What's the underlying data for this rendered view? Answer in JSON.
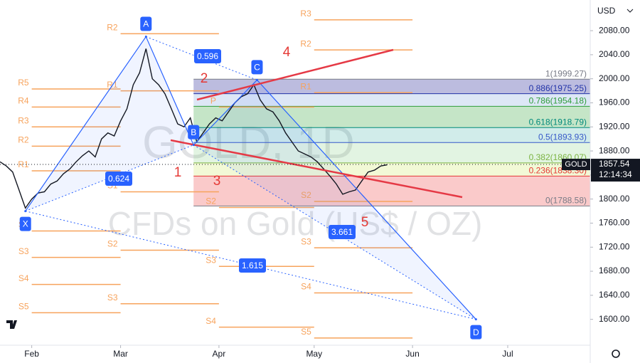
{
  "chart_data": {
    "type": "line",
    "currency": "USD",
    "watermark": {
      "symbol": "GOLD, 1D",
      "description": "CFDs on Gold (US$ / OZ)"
    },
    "x": [
      22,
      24,
      26,
      28,
      30,
      32,
      34,
      36,
      38,
      40,
      42,
      44,
      46,
      48,
      50,
      52,
      54,
      56,
      58,
      60,
      62,
      64,
      66,
      68,
      70,
      72,
      74,
      76,
      78,
      80,
      82,
      84,
      86,
      88,
      90,
      92,
      94,
      96,
      98,
      100,
      102,
      104,
      106,
      108,
      110,
      112,
      114,
      116,
      118,
      120,
      122,
      124,
      126,
      128,
      130,
      132,
      134,
      136,
      138,
      140,
      142,
      144
    ],
    "series": [
      {
        "name": "GOLD",
        "color": "#131722",
        "values": [
          1862,
          1855,
          1845,
          1815,
          1785,
          1800,
          1810,
          1812,
          1825,
          1830,
          1842,
          1850,
          1862,
          1872,
          1880,
          1870,
          1900,
          1910,
          1905,
          1930,
          1950,
          1990,
          2010,
          2050,
          2000,
          1990,
          1975,
          1950,
          1925,
          1920,
          1935,
          1895,
          1910,
          1925,
          1935,
          1930,
          1945,
          1960,
          1970,
          1975,
          1990,
          1965,
          1950,
          1945,
          1930,
          1910,
          1895,
          1880,
          1875,
          1870,
          1862,
          1850,
          1838,
          1825,
          1808,
          1812,
          1815,
          1830,
          1845,
          1848,
          1855,
          1857
        ]
      }
    ],
    "last_price": 1857.54,
    "clock": "12:14:34",
    "xlim": [
      22,
      208
    ],
    "xticks": [
      {
        "value": 32,
        "label": "Feb"
      },
      {
        "value": 60,
        "label": "Mar"
      },
      {
        "value": 91,
        "label": "Apr"
      },
      {
        "value": 121,
        "label": "May"
      },
      {
        "value": 152,
        "label": "Jun"
      },
      {
        "value": 182,
        "label": "Jul"
      }
    ],
    "ylim": [
      1557,
      2131
    ],
    "yticks": [
      {
        "value": 1600,
        "label": "1600.00"
      },
      {
        "value": 1640,
        "label": "1640.00"
      },
      {
        "value": 1680,
        "label": "1680.00"
      },
      {
        "value": 1720,
        "label": "1720.00"
      },
      {
        "value": 1760,
        "label": "1760.00"
      },
      {
        "value": 1800,
        "label": "1800.00"
      },
      {
        "value": 1840,
        "label": "1840.00"
      },
      {
        "value": 1880,
        "label": "1880.00"
      },
      {
        "value": 1920,
        "label": "1920.00"
      },
      {
        "value": 1960,
        "label": "1960.00"
      },
      {
        "value": 2000,
        "label": "2000.00"
      },
      {
        "value": 2040,
        "label": "2040.00"
      },
      {
        "value": 2080,
        "label": "2080.00"
      }
    ],
    "pattern": {
      "color": "#2962ff",
      "points": [
        {
          "name": "X",
          "x": 30,
          "y": 1780
        },
        {
          "name": "A",
          "x": 68,
          "y": 2070
        },
        {
          "name": "B",
          "x": 83,
          "y": 1890
        },
        {
          "name": "C",
          "x": 103,
          "y": 1998
        },
        {
          "name": "D",
          "x": 172,
          "y": 1600
        }
      ],
      "ratios": [
        0.596,
        0.624,
        1.615,
        3.661
      ]
    },
    "waves": [
      "1",
      "2",
      "3",
      "4",
      "5"
    ],
    "fib": [
      {
        "value": 1999.27,
        "label": "1(1999.27)",
        "color": "#787b86",
        "fill": "rgba(80,80,170,0.38)"
      },
      {
        "value": 1975.25,
        "label": "0.886(1975.25)",
        "color": "#2132a8",
        "fill": "rgba(120,160,220,0.25)"
      },
      {
        "value": 1954.18,
        "label": "0.786(1954.18)",
        "color": "#2e9d3a",
        "fill": "rgba(76,175,80,0.32)"
      },
      {
        "value": 1918.79,
        "label": "0.618(1918.79)",
        "color": "#00897b",
        "fill": "rgba(0,150,136,0.18)"
      },
      {
        "value": 1893.93,
        "label": "0.5(1893.93)",
        "color": "#3658c8",
        "fill": "rgba(110,200,110,0.2)"
      },
      {
        "value": 1860.07,
        "label": "0.382(1860.07)",
        "color": "#7cb342",
        "fill": "rgba(205,230,90,0.25)"
      },
      {
        "value": 1838.3,
        "label": "0.236(1838.30)",
        "color": "#e53935",
        "fill": "rgba(240,90,90,0.32)"
      },
      {
        "value": 1788.58,
        "label": "0(1788.58)",
        "color": "#787b86",
        "fill": "none"
      }
    ],
    "pivot_color": "#f7a35c",
    "pivots": [
      {
        "start": 32,
        "end": 60,
        "levels": [
          {
            "name": "R5",
            "value": 1983
          },
          {
            "name": "R4",
            "value": 1953
          },
          {
            "name": "R3",
            "value": 1920
          },
          {
            "name": "R2",
            "value": 1888
          },
          {
            "name": "R1",
            "value": 1847
          },
          {
            "name": "S2",
            "value": 1747
          },
          {
            "name": "S3",
            "value": 1703
          },
          {
            "name": "S4",
            "value": 1658
          },
          {
            "name": "S5",
            "value": 1611
          }
        ]
      },
      {
        "start": 60,
        "end": 91,
        "levels": [
          {
            "name": "R2",
            "value": 2075
          },
          {
            "name": "R1",
            "value": 1980
          },
          {
            "name": "S1",
            "value": 1812
          },
          {
            "name": "S2",
            "value": 1715
          },
          {
            "name": "S3",
            "value": 1626
          }
        ]
      },
      {
        "start": 91,
        "end": 121,
        "levels": [
          {
            "name": "P",
            "value": 1953
          },
          {
            "name": "S2",
            "value": 1786
          },
          {
            "name": "S3",
            "value": 1688
          },
          {
            "name": "S4",
            "value": 1587
          }
        ]
      },
      {
        "start": 121,
        "end": 152,
        "levels": [
          {
            "name": "R3",
            "value": 2098
          },
          {
            "name": "R2",
            "value": 2048
          },
          {
            "name": "R1",
            "value": 1977
          },
          {
            "name": "S2",
            "value": 1796
          },
          {
            "name": "S3",
            "value": 1719
          },
          {
            "name": "S4",
            "value": 1644
          },
          {
            "name": "S5",
            "value": 1569
          }
        ]
      }
    ],
    "grid": false
  }
}
